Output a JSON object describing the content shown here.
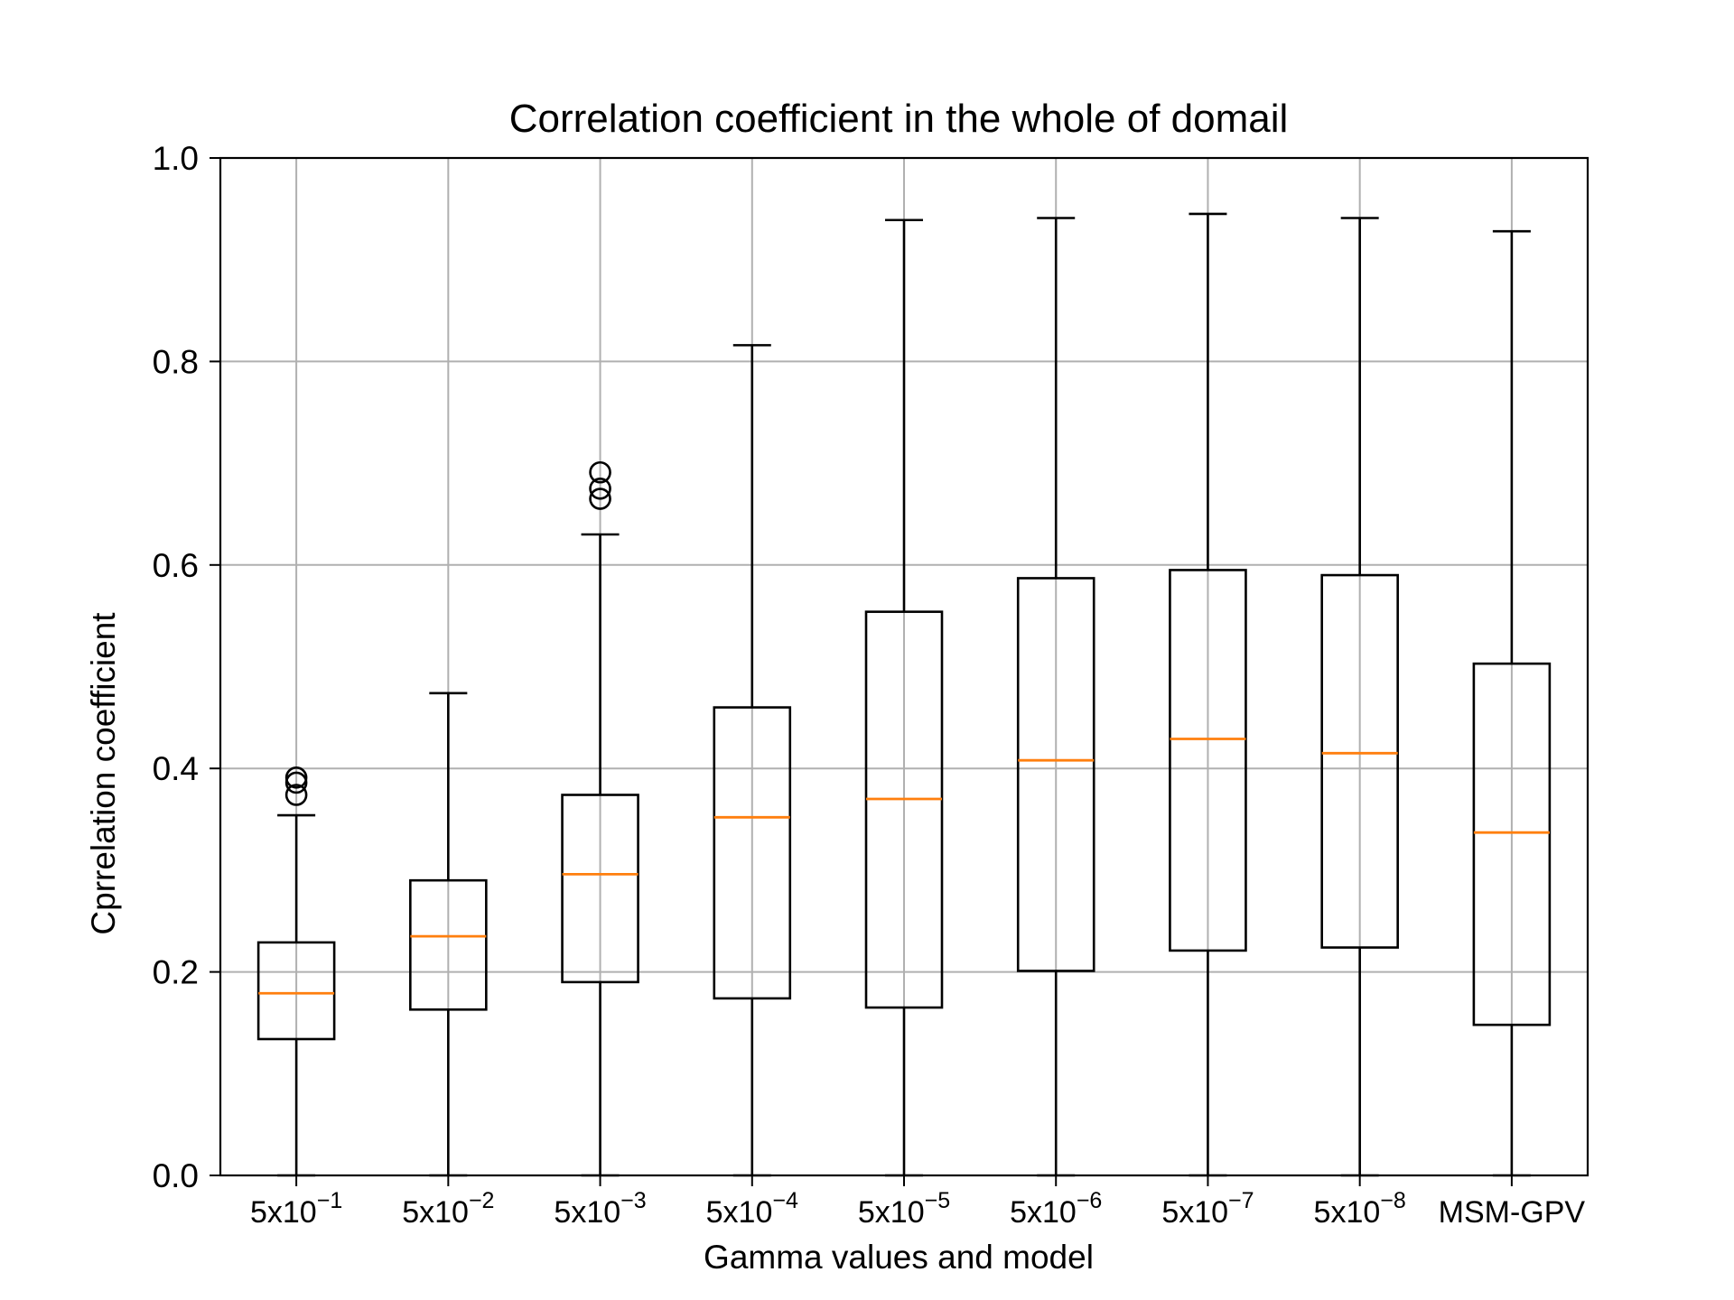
{
  "chart_data": {
    "type": "box",
    "title": "Correlation coefficient in the whole of domail",
    "xlabel": "Gamma values and model",
    "ylabel": "Cprrelation coefficient",
    "ylim": [
      0.0,
      1.0
    ],
    "yticks": [
      0.0,
      0.2,
      0.4,
      0.6,
      0.8,
      1.0
    ],
    "ytick_labels": [
      "0.0",
      "0.2",
      "0.4",
      "0.6",
      "0.8",
      "1.0"
    ],
    "grid": true,
    "categories": [
      {
        "base": "5x10",
        "exp": "−1"
      },
      {
        "base": "5x10",
        "exp": "−2"
      },
      {
        "base": "5x10",
        "exp": "−3"
      },
      {
        "base": "5x10",
        "exp": "−4"
      },
      {
        "base": "5x10",
        "exp": "−5"
      },
      {
        "base": "5x10",
        "exp": "−6"
      },
      {
        "base": "5x10",
        "exp": "−7"
      },
      {
        "base": "5x10",
        "exp": "−8"
      },
      {
        "base": "MSM-GPV",
        "exp": ""
      }
    ],
    "boxes": [
      {
        "whislo": 0.0,
        "q1": 0.134,
        "med": 0.179,
        "q3": 0.229,
        "whishi": 0.354,
        "fliers": [
          0.374,
          0.386,
          0.391
        ]
      },
      {
        "whislo": 0.0,
        "q1": 0.163,
        "med": 0.235,
        "q3": 0.29,
        "whishi": 0.474,
        "fliers": []
      },
      {
        "whislo": 0.0,
        "q1": 0.19,
        "med": 0.296,
        "q3": 0.374,
        "whishi": 0.63,
        "fliers": [
          0.665,
          0.675,
          0.691
        ]
      },
      {
        "whislo": 0.0,
        "q1": 0.174,
        "med": 0.352,
        "q3": 0.46,
        "whishi": 0.816,
        "fliers": []
      },
      {
        "whislo": 0.0,
        "q1": 0.165,
        "med": 0.37,
        "q3": 0.554,
        "whishi": 0.939,
        "fliers": []
      },
      {
        "whislo": 0.0,
        "q1": 0.201,
        "med": 0.408,
        "q3": 0.587,
        "whishi": 0.941,
        "fliers": []
      },
      {
        "whislo": 0.0,
        "q1": 0.221,
        "med": 0.429,
        "q3": 0.595,
        "whishi": 0.945,
        "fliers": []
      },
      {
        "whislo": 0.0,
        "q1": 0.224,
        "med": 0.415,
        "q3": 0.59,
        "whishi": 0.941,
        "fliers": []
      },
      {
        "whislo": 0.0,
        "q1": 0.148,
        "med": 0.337,
        "q3": 0.503,
        "whishi": 0.928,
        "fliers": []
      }
    ],
    "colors": {
      "box": "#000000",
      "median": "#ff7f0e",
      "grid": "#b0b0b0",
      "axes": "#000000"
    }
  }
}
